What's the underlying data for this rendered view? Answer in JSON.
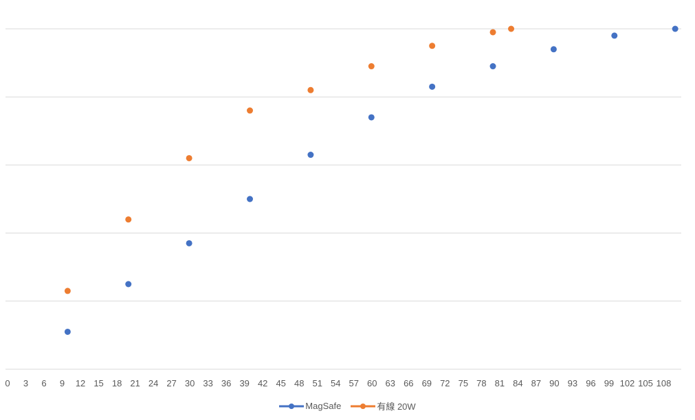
{
  "chart_data": {
    "type": "scatter",
    "title": "",
    "xlabel": "",
    "ylabel": "",
    "xlim": [
      0,
      111
    ],
    "ylim": [
      0,
      100
    ],
    "grid": true,
    "legend_position": "bottom",
    "x_ticks": [
      "0",
      "3",
      "6",
      "9",
      "12",
      "15",
      "18",
      "21",
      "24",
      "27",
      "30",
      "33",
      "36",
      "39",
      "42",
      "45",
      "48",
      "51",
      "54",
      "57",
      "60",
      "63",
      "66",
      "69",
      "72",
      "75",
      "78",
      "81",
      "84",
      "87",
      "90",
      "93",
      "96",
      "99",
      "102",
      "105",
      "108"
    ],
    "series": [
      {
        "name": "MagSafe",
        "color": "#4472C4",
        "points": [
          [
            10,
            11
          ],
          [
            20,
            25
          ],
          [
            30,
            37
          ],
          [
            40,
            50
          ],
          [
            50,
            63
          ],
          [
            60,
            74
          ],
          [
            70,
            83
          ],
          [
            80,
            89
          ],
          [
            90,
            94
          ],
          [
            100,
            98
          ],
          [
            110,
            100
          ]
        ]
      },
      {
        "name": "有線 20W",
        "color": "#ED7D31",
        "points": [
          [
            10,
            23
          ],
          [
            20,
            44
          ],
          [
            30,
            62
          ],
          [
            40,
            76
          ],
          [
            50,
            82
          ],
          [
            60,
            89
          ],
          [
            70,
            95
          ],
          [
            80,
            99
          ],
          [
            83,
            100
          ]
        ]
      }
    ]
  }
}
